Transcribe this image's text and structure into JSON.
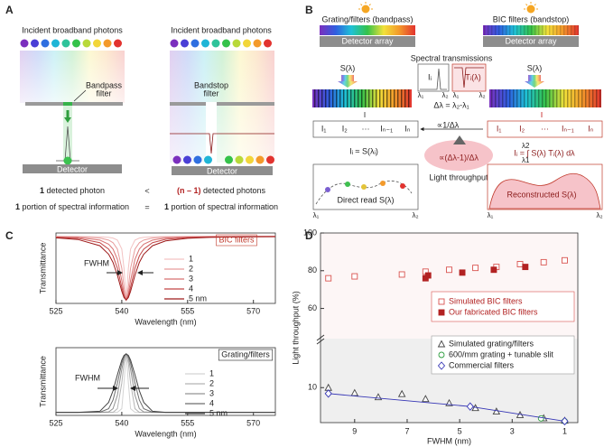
{
  "panel_a": {
    "label": "A",
    "incident_left": "Incident broadband photons",
    "incident_right": "Incident broadband photons",
    "bandpass": [
      "Bandpass",
      "filter"
    ],
    "bandstop": [
      "Bandstop",
      "filter"
    ],
    "detector_left": "Detector",
    "detector_right": "Detector",
    "left_count": {
      "bold": "1",
      "text": " detected photon"
    },
    "compare_count": "<",
    "right_count": {
      "bold": "(n – 1)",
      "text": " detected photons"
    },
    "left_info": {
      "bold": "1",
      "text": " portion of spectral information"
    },
    "compare_info": "=",
    "right_info": {
      "bold": "1",
      "text": " portion of spectral information"
    }
  },
  "panel_b": {
    "label": "B",
    "left_title": "Grating/filters (bandpass)",
    "left_detector": "Detector array",
    "right_title": "BIC filters (bandstop)",
    "right_detector": "Detector array",
    "s_left": "S(λ)",
    "s_right": "S(λ)",
    "spectral": "Spectral transmissions",
    "box_i": "Iᵢ",
    "box_t": "Tᵢ(λ)",
    "lambdas": [
      "λ₁",
      "λ₂",
      "λ₁",
      "λ₂"
    ],
    "delta": "Δλ = λ₂-λ₁",
    "prop_left": "∝1/Δλ",
    "prop_right": "∝(Δλ-1)/Δλ",
    "throughput": "Light throughput",
    "left_cells": [
      "I₁",
      "I₂",
      "···",
      "Iₙ₋₁",
      "Iₙ"
    ],
    "right_cells": [
      "I₁",
      "I₂",
      "···",
      "Iₙ₋₁",
      "Iₙ"
    ],
    "left_eq": "Iᵢ ≈ S(λᵢ)",
    "right_eq": "Iᵢ = ∫ S(λ) Tᵢ(λ) dλ",
    "right_eq_limits": [
      "λ2",
      "λ1"
    ],
    "left_plot": "Direct read S(λ)",
    "right_plot": "Reconstructed S(λ)",
    "plot_lambdas": [
      "λ₁",
      "λ₂",
      "λ₁",
      "λ₂"
    ]
  },
  "panel_c_label": "C",
  "panel_d_label": "D",
  "chart_data": [
    {
      "type": "line",
      "label": "BIC filters",
      "annotation": "FWHM",
      "xlabel": "Wavelength (nm)",
      "ylabel": "Transmittance",
      "x": [
        525,
        530,
        535,
        537,
        538,
        539,
        540,
        540.5,
        541,
        541.5,
        542,
        543,
        544,
        545,
        547,
        550,
        555,
        560,
        565,
        570,
        575
      ],
      "xlim": [
        525,
        575
      ],
      "xticks": [
        525,
        540,
        555,
        570
      ],
      "ylim": [
        0,
        1.05
      ],
      "color": "#c0392b",
      "series": [
        {
          "name": "1",
          "color": "#f3c3c3",
          "values": [
            0.999,
            0.998,
            0.993,
            0.985,
            0.974,
            0.944,
            0.81,
            0.525,
            0.05,
            0.525,
            0.81,
            0.944,
            0.974,
            0.985,
            0.993,
            0.997,
            0.999,
            0.999,
            1,
            1,
            1
          ]
        },
        {
          "name": "2",
          "color": "#e79c9c",
          "values": [
            0.996,
            0.992,
            0.974,
            0.944,
            0.905,
            0.81,
            0.525,
            0.24,
            0.05,
            0.24,
            0.525,
            0.81,
            0.905,
            0.944,
            0.974,
            0.988,
            0.995,
            0.997,
            0.998,
            0.999,
            0.999
          ]
        },
        {
          "name": "3",
          "color": "#d87272",
          "values": [
            0.992,
            0.983,
            0.944,
            0.883,
            0.81,
            0.658,
            0.342,
            0.145,
            0.05,
            0.145,
            0.342,
            0.658,
            0.81,
            0.883,
            0.944,
            0.974,
            0.989,
            0.994,
            0.996,
            0.997,
            0.998
          ]
        },
        {
          "name": "4",
          "color": "#c24646",
          "values": [
            0.985,
            0.97,
            0.905,
            0.81,
            0.708,
            0.525,
            0.24,
            0.106,
            0.05,
            0.106,
            0.24,
            0.525,
            0.708,
            0.81,
            0.905,
            0.955,
            0.981,
            0.99,
            0.993,
            0.996,
            0.997
          ]
        },
        {
          "name": "5 nm",
          "color": "#9e1b1b",
          "values": [
            0.977,
            0.953,
            0.86,
            0.733,
            0.611,
            0.421,
            0.181,
            0.087,
            0.05,
            0.087,
            0.181,
            0.421,
            0.611,
            0.733,
            0.86,
            0.932,
            0.971,
            0.984,
            0.99,
            0.993,
            0.995
          ]
        }
      ]
    },
    {
      "type": "line",
      "label": "Grating/filters",
      "annotation": "FWHM",
      "xlabel": "Wavelength (nm)",
      "ylabel": "Transmittance",
      "x": [
        525,
        530,
        535,
        537,
        538,
        539,
        540,
        540.5,
        541,
        541.5,
        542,
        543,
        544,
        545,
        547,
        550,
        555,
        560,
        565,
        570,
        575
      ],
      "xlim": [
        525,
        575
      ],
      "xticks": [
        525,
        540,
        555,
        570
      ],
      "ylim": [
        -0.05,
        1.05
      ],
      "color": "#222222",
      "series": [
        {
          "name": "1",
          "color": "#d4d4d4",
          "values": [
            0,
            0,
            0,
            0,
            0,
            0,
            0.059,
            0.475,
            0.95,
            0.475,
            0.059,
            0,
            0,
            0,
            0,
            0,
            0,
            0,
            0,
            0,
            0
          ]
        },
        {
          "name": "2",
          "color": "#b4b4b4",
          "values": [
            0,
            0,
            0,
            0,
            0,
            0.059,
            0.475,
            0.799,
            0.95,
            0.799,
            0.475,
            0.059,
            0,
            0,
            0,
            0,
            0,
            0,
            0,
            0,
            0
          ]
        },
        {
          "name": "3",
          "color": "#939393",
          "values": [
            0,
            0,
            0,
            0.007,
            0.059,
            0.277,
            0.698,
            0.88,
            0.95,
            0.88,
            0.698,
            0.277,
            0.059,
            0.007,
            0,
            0,
            0,
            0,
            0,
            0,
            0
          ]
        },
        {
          "name": "4",
          "color": "#6d6d6d",
          "values": [
            0,
            0,
            0.002,
            0.059,
            0.2,
            0.475,
            0.799,
            0.91,
            0.95,
            0.91,
            0.799,
            0.475,
            0.2,
            0.059,
            0.002,
            0,
            0,
            0,
            0,
            0,
            0
          ]
        },
        {
          "name": "5 nm",
          "color": "#444444",
          "values": [
            0,
            0,
            0.017,
            0.161,
            0.35,
            0.61,
            0.85,
            0.924,
            0.95,
            0.924,
            0.85,
            0.61,
            0.35,
            0.161,
            0.017,
            0,
            0,
            0,
            0,
            0,
            0
          ]
        }
      ]
    },
    {
      "type": "scatter",
      "xlabel": "FWHM (nm)",
      "ylabel": "Light throughput (%)",
      "xlim": [
        10.3,
        0.5
      ],
      "xticks": [
        9,
        7,
        5,
        3,
        1
      ],
      "ylim": [
        0,
        100
      ],
      "ybreak": [
        24,
        44
      ],
      "yticks": [
        10,
        60,
        80,
        100
      ],
      "series": [
        {
          "name": "Simulated BIC filters",
          "color": "#d9534f",
          "marker": "square-open",
          "x": [
            10,
            9,
            7.2,
            6.3,
            5.4,
            4.4,
            3.6,
            2.7,
            1.8,
            1
          ],
          "values": [
            76,
            77,
            78,
            79.5,
            80.5,
            81.5,
            82,
            83.5,
            84.5,
            85.5
          ]
        },
        {
          "name": "Our fabricated BIC filters",
          "color": "#b22222",
          "marker": "square",
          "x": [
            6.3,
            6.2,
            4.9,
            3.7,
            2.5
          ],
          "values": [
            76,
            77.5,
            79,
            80.5,
            82
          ]
        },
        {
          "name": "Simulated grating/filters",
          "color": "#444444",
          "marker": "triangle-open",
          "x": [
            10,
            9,
            8.1,
            7.2,
            6.3,
            5.4,
            4.4,
            3.6,
            2.7,
            1.8,
            1
          ],
          "values": [
            10,
            8.5,
            7.3,
            8.2,
            6.8,
            5.6,
            4.2,
            3.2,
            2.2,
            1.3,
            0.6
          ]
        },
        {
          "name": "600/mm grating + tunable slit",
          "color": "#2e9e3e",
          "marker": "circle-open",
          "x": [
            1.9,
            1
          ],
          "values": [
            1.2,
            0.4
          ]
        },
        {
          "name": "Commercial filters",
          "color": "#3535b5",
          "marker": "diamond-open",
          "line": true,
          "x": [
            10,
            4.6,
            1
          ],
          "values": [
            8.3,
            4.6,
            0.4
          ]
        }
      ]
    }
  ]
}
